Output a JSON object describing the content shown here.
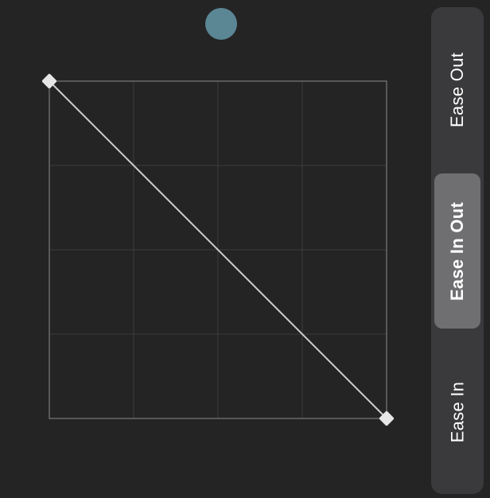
{
  "preview": {
    "color": "#5b8694"
  },
  "curve": {
    "type": "cubic-bezier",
    "preset": "Ease In Out",
    "control_points": [
      0.0,
      1.0,
      1.0,
      0.0
    ],
    "grid_divisions": 4,
    "curve_color": "#cfcfcf",
    "grid_color": "#3c3c3c",
    "border_color": "#6a6a6a",
    "handle_color": "#e6e6e6"
  },
  "easing_options": [
    {
      "label": "Ease Out",
      "selected": false
    },
    {
      "label": "Ease In Out",
      "selected": true
    },
    {
      "label": "Ease In",
      "selected": false
    }
  ]
}
